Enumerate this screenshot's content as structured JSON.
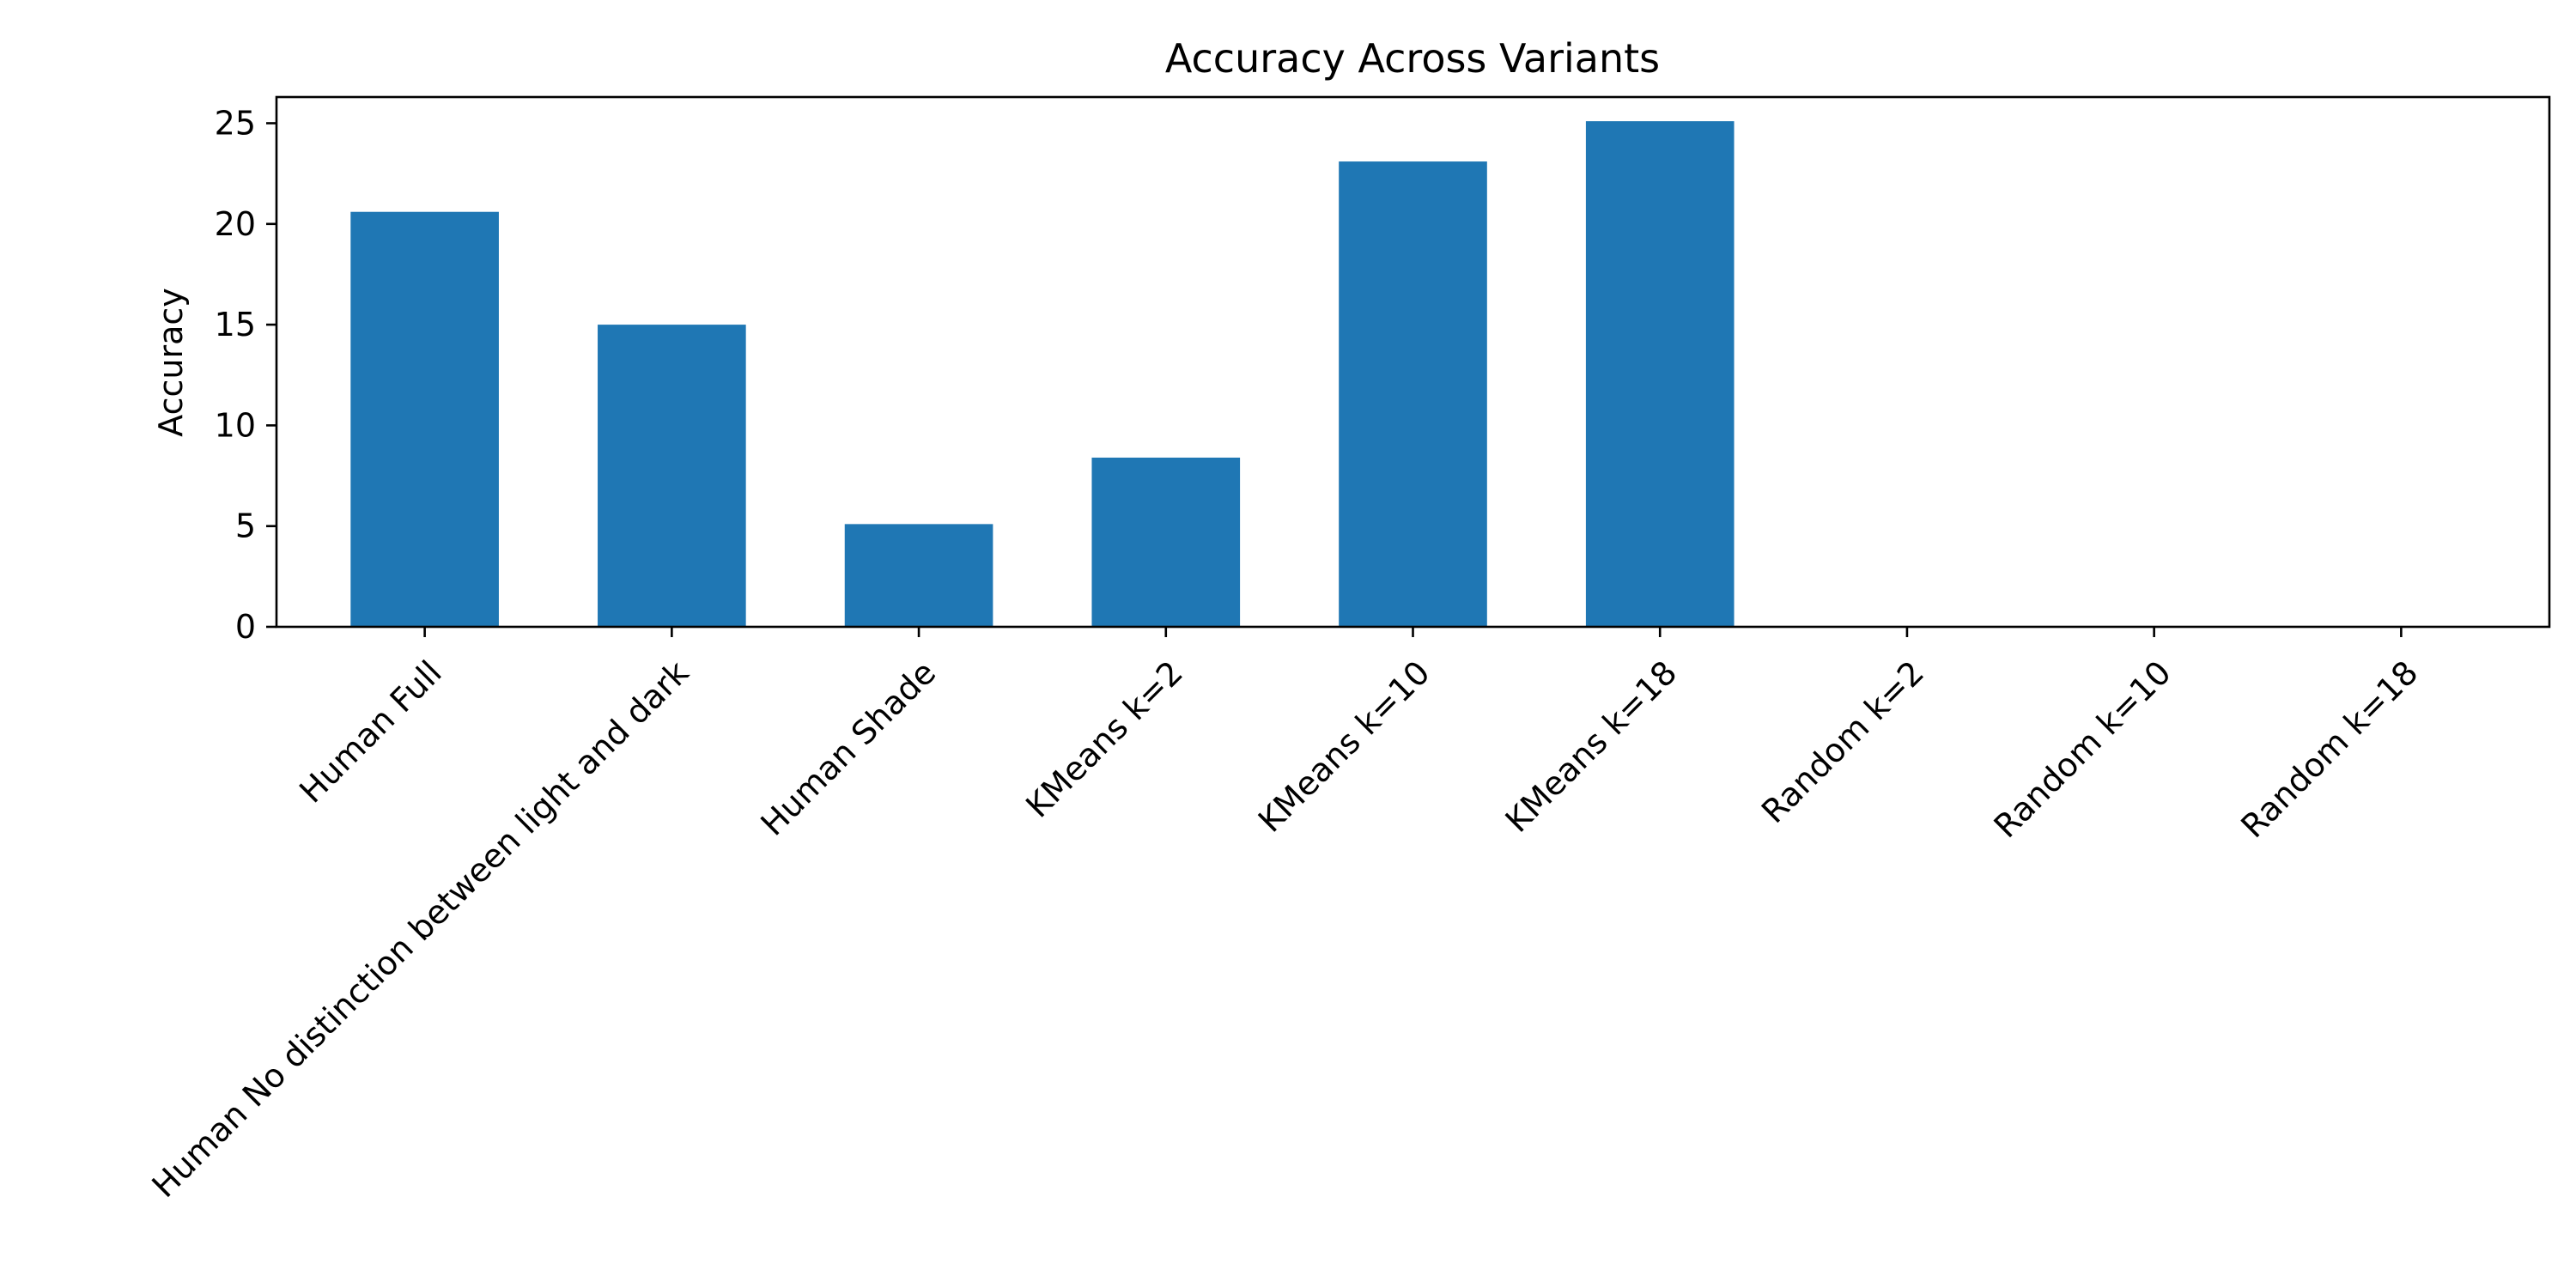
{
  "chart_data": {
    "type": "bar",
    "title": "Accuracy Across Variants",
    "xlabel": "",
    "ylabel": "Accuracy",
    "categories": [
      "Human Full",
      "Human No distinction between light and dark",
      "Human Shade",
      "KMeans k=2",
      "KMeans k=10",
      "KMeans k=18",
      "Random k=2",
      "Random k=10",
      "Random k=18"
    ],
    "values": [
      20.6,
      15.0,
      5.1,
      8.4,
      23.1,
      25.1,
      0,
      0,
      0
    ],
    "ylim": [
      0,
      26.3
    ],
    "yticks": [
      0,
      5,
      10,
      15,
      20,
      25
    ],
    "grid": false,
    "legend": "none",
    "colors": {
      "bar": "#1f77b4",
      "axis": "#000000",
      "text": "#000000"
    }
  }
}
